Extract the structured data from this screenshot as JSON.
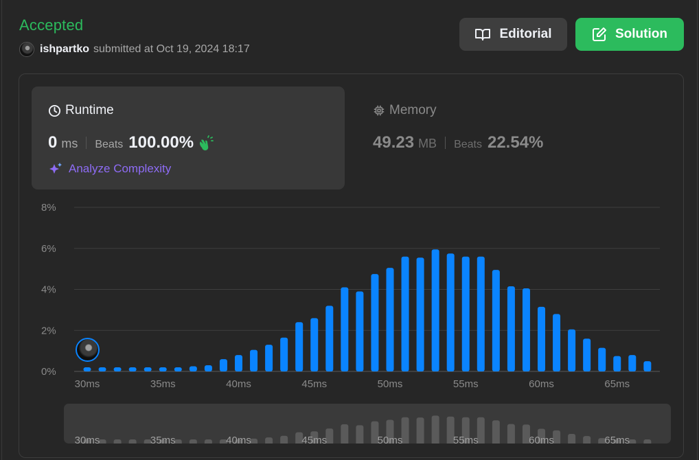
{
  "header": {
    "status": "Accepted",
    "username": "ishpartko",
    "submitted_text": "submitted at Oct 19, 2024 18:17"
  },
  "buttons": {
    "editorial": "Editorial",
    "solution": "Solution"
  },
  "runtime": {
    "title": "Runtime",
    "value": "0",
    "unit": "ms",
    "beats_label": "Beats",
    "beats_value": "100.00%",
    "analyze_label": "Analyze Complexity"
  },
  "memory": {
    "title": "Memory",
    "value": "49.23",
    "unit": "MB",
    "beats_label": "Beats",
    "beats_value": "22.54%"
  },
  "colors": {
    "accepted": "#2cbb5d",
    "bar": "#0a84ff",
    "minimap_bar": "#5a5a5a",
    "analyze": "#8e6cf5"
  },
  "chart_data": {
    "type": "bar",
    "title": "",
    "xlabel": "",
    "ylabel": "",
    "ylim": [
      0,
      8
    ],
    "yticks": [
      "0%",
      "2%",
      "4%",
      "6%",
      "8%"
    ],
    "xticks": [
      {
        "x": 30,
        "label": "30ms"
      },
      {
        "x": 35,
        "label": "35ms"
      },
      {
        "x": 40,
        "label": "40ms"
      },
      {
        "x": 45,
        "label": "45ms"
      },
      {
        "x": 50,
        "label": "50ms"
      },
      {
        "x": 55,
        "label": "55ms"
      },
      {
        "x": 60,
        "label": "60ms"
      },
      {
        "x": 65,
        "label": "65ms"
      }
    ],
    "x": [
      30,
      31,
      32,
      33,
      34,
      35,
      36,
      37,
      38,
      39,
      40,
      41,
      42,
      43,
      44,
      45,
      46,
      47,
      48,
      49,
      50,
      51,
      52,
      53,
      54,
      55,
      56,
      57,
      58,
      59,
      60,
      61,
      62,
      63,
      64,
      65,
      66,
      67
    ],
    "values": [
      0.2,
      0.2,
      0.2,
      0.2,
      0.2,
      0.2,
      0.2,
      0.25,
      0.3,
      0.6,
      0.8,
      1.05,
      1.3,
      1.65,
      2.4,
      2.6,
      3.2,
      4.1,
      3.9,
      4.75,
      5.05,
      5.6,
      5.55,
      5.95,
      5.75,
      5.6,
      5.6,
      4.95,
      4.15,
      4.05,
      3.15,
      2.8,
      2.05,
      1.6,
      1.15,
      0.75,
      0.8,
      0.5
    ],
    "highlight_x": 30,
    "grid": true
  }
}
